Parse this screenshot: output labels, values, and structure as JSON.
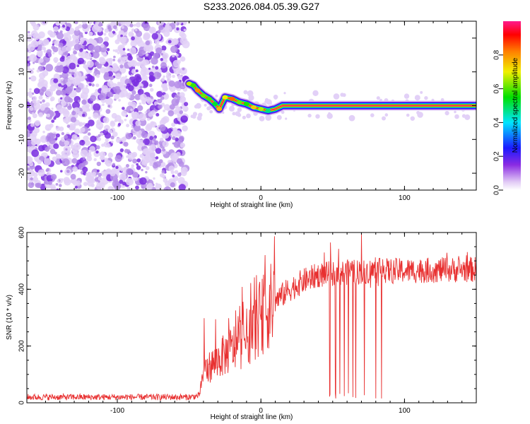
{
  "title": "S233.2026.084.05.39.G27",
  "chart_data": [
    {
      "type": "heatmap",
      "title": "S233.2026.084.05.39.G27",
      "xlabel": "Height of straight line (km)",
      "ylabel": "Frequency (Hz)",
      "xlim": [
        -163,
        150
      ],
      "ylim": [
        -25,
        25
      ],
      "x_ticks": [
        "-100",
        "0",
        "100"
      ],
      "y_ticks": [
        "20",
        "10",
        "0",
        "-10",
        "-20"
      ],
      "colorbar": {
        "label": "Normalized spectral amplitude",
        "ticks": [
          "0.0",
          "0.2",
          "0.4",
          "0.6",
          "0.8"
        ],
        "range": [
          0,
          1
        ]
      },
      "noise_region": {
        "x_from": -163,
        "x_to": -52,
        "amplitude_approx": 0.05
      },
      "ridge_points": [
        {
          "x": -50,
          "y": 6.5
        },
        {
          "x": -47,
          "y": 6.0
        },
        {
          "x": -44,
          "y": 4.5
        },
        {
          "x": -40,
          "y": 3.0
        },
        {
          "x": -36,
          "y": 2.0
        },
        {
          "x": -32,
          "y": 0.5
        },
        {
          "x": -29,
          "y": -1.0
        },
        {
          "x": -25,
          "y": 2.5
        },
        {
          "x": -20,
          "y": 2.0
        },
        {
          "x": -15,
          "y": 1.0
        },
        {
          "x": -10,
          "y": 0.5
        },
        {
          "x": -5,
          "y": -0.5
        },
        {
          "x": 0,
          "y": -1.0
        },
        {
          "x": 5,
          "y": -1.5
        },
        {
          "x": 10,
          "y": -1.0
        },
        {
          "x": 15,
          "y": 0.0
        },
        {
          "x": 150,
          "y": 0.0
        }
      ]
    },
    {
      "type": "line",
      "xlabel": "Height of straight line (km)",
      "ylabel": "SNR (10 * v/v)",
      "xlim": [
        -163,
        150
      ],
      "ylim": [
        0,
        600
      ],
      "x_ticks": [
        "-100",
        "0",
        "100"
      ],
      "y_ticks": [
        "600",
        "400",
        "200",
        "0"
      ],
      "color": "#e83030",
      "profile": [
        {
          "x": -163,
          "y": 20
        },
        {
          "x": -50,
          "y": 20
        },
        {
          "x": -43,
          "y": 25
        },
        {
          "x": -40,
          "y": 110
        },
        {
          "x": -30,
          "y": 150
        },
        {
          "x": -20,
          "y": 190
        },
        {
          "x": -10,
          "y": 230
        },
        {
          "x": 0,
          "y": 300
        },
        {
          "x": 10,
          "y": 360
        },
        {
          "x": 20,
          "y": 400
        },
        {
          "x": 30,
          "y": 430
        },
        {
          "x": 40,
          "y": 450
        },
        {
          "x": 60,
          "y": 460
        },
        {
          "x": 80,
          "y": 465
        },
        {
          "x": 100,
          "y": 465
        },
        {
          "x": 150,
          "y": 470
        }
      ],
      "dropouts": [
        {
          "x": 48,
          "y": 30
        },
        {
          "x": 52,
          "y": 20
        },
        {
          "x": 55,
          "y": 25
        },
        {
          "x": 58,
          "y": 15
        },
        {
          "x": 61,
          "y": 20
        },
        {
          "x": 64,
          "y": 30
        },
        {
          "x": 66,
          "y": 15
        },
        {
          "x": 72,
          "y": 20
        },
        {
          "x": 80,
          "y": 25
        },
        {
          "x": 84,
          "y": 30
        }
      ],
      "peak": {
        "x": 70,
        "y": 600
      }
    }
  ]
}
